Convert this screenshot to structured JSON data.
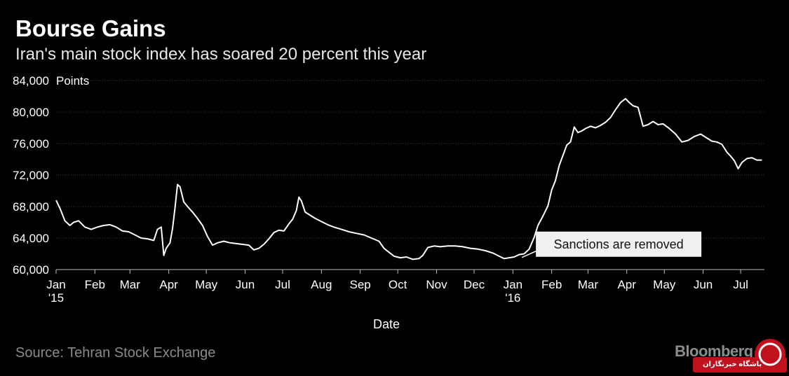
{
  "header": {
    "title": "Bourse Gains",
    "subtitle": "Iran's main stock index has soared 20 percent this year"
  },
  "footer": {
    "source": "Source: Tehran Stock Exchange",
    "brand": "Bloomberg",
    "watermark_text": "باشگاه خبرنگاران"
  },
  "colors": {
    "background": "#000000",
    "line": "#ffffff",
    "gridline": "#3a3a3a",
    "annotation_box": "#f0f0f0",
    "watermark_red": "#c0121d"
  },
  "chart_data": {
    "type": "line",
    "title": "Bourse Gains",
    "subtitle": "Iran's main stock index has soared 20 percent this year",
    "xlabel": "Date",
    "ylabel": "",
    "y_unit_label": "Points",
    "ylim": [
      60000,
      84000
    ],
    "yticks": [
      60000,
      64000,
      68000,
      72000,
      76000,
      80000,
      84000
    ],
    "ytick_labels": [
      "60,000",
      "64,000",
      "68,000",
      "72,000",
      "76,000",
      "80,000",
      "84,000"
    ],
    "xlim": [
      "2015-01-01",
      "2016-07-20"
    ],
    "xticks": [
      {
        "date": "2015-01-01",
        "label": "Jan",
        "sublabel": "'15"
      },
      {
        "date": "2015-02-01",
        "label": "Feb"
      },
      {
        "date": "2015-03-01",
        "label": "Mar"
      },
      {
        "date": "2015-04-01",
        "label": "Apr"
      },
      {
        "date": "2015-05-01",
        "label": "May"
      },
      {
        "date": "2015-06-01",
        "label": "Jun"
      },
      {
        "date": "2015-07-01",
        "label": "Jul"
      },
      {
        "date": "2015-08-01",
        "label": "Aug"
      },
      {
        "date": "2015-09-01",
        "label": "Sep"
      },
      {
        "date": "2015-10-01",
        "label": "Oct"
      },
      {
        "date": "2015-11-01",
        "label": "Nov"
      },
      {
        "date": "2015-12-01",
        "label": "Dec"
      },
      {
        "date": "2016-01-01",
        "label": "Jan",
        "sublabel": "'16"
      },
      {
        "date": "2016-02-01",
        "label": "Feb"
      },
      {
        "date": "2016-03-01",
        "label": "Mar"
      },
      {
        "date": "2016-04-01",
        "label": "Apr"
      },
      {
        "date": "2016-05-01",
        "label": "May"
      },
      {
        "date": "2016-06-01",
        "label": "Jun"
      },
      {
        "date": "2016-07-01",
        "label": "Jul"
      }
    ],
    "grid": true,
    "legend": "none",
    "annotations": [
      {
        "text": "Sanctions are removed",
        "x": "2016-01-16",
        "y": 61800
      }
    ],
    "series": [
      {
        "x": [
          "2015-01-01",
          "2015-01-04",
          "2015-01-08",
          "2015-01-12",
          "2015-01-15",
          "2015-01-19",
          "2015-01-24",
          "2015-01-29",
          "2015-02-03",
          "2015-02-08",
          "2015-02-13",
          "2015-02-18",
          "2015-02-23",
          "2015-02-28",
          "2015-03-05",
          "2015-03-10",
          "2015-03-15",
          "2015-03-20",
          "2015-03-23",
          "2015-03-26",
          "2015-03-28",
          "2015-03-30",
          "2015-04-02",
          "2015-04-04",
          "2015-04-06",
          "2015-04-08",
          "2015-04-10",
          "2015-04-13",
          "2015-04-16",
          "2015-04-20",
          "2015-04-24",
          "2015-04-28",
          "2015-05-02",
          "2015-05-06",
          "2015-05-10",
          "2015-05-15",
          "2015-05-20",
          "2015-05-25",
          "2015-05-30",
          "2015-06-04",
          "2015-06-08",
          "2015-06-12",
          "2015-06-16",
          "2015-06-20",
          "2015-06-24",
          "2015-06-28",
          "2015-07-02",
          "2015-07-06",
          "2015-07-09",
          "2015-07-12",
          "2015-07-14",
          "2015-07-16",
          "2015-07-19",
          "2015-07-23",
          "2015-07-27",
          "2015-08-01",
          "2015-08-06",
          "2015-08-11",
          "2015-08-17",
          "2015-08-23",
          "2015-08-29",
          "2015-09-04",
          "2015-09-10",
          "2015-09-16",
          "2015-09-20",
          "2015-09-24",
          "2015-09-28",
          "2015-10-03",
          "2015-10-08",
          "2015-10-13",
          "2015-10-18",
          "2015-10-21",
          "2015-10-25",
          "2015-10-30",
          "2015-11-04",
          "2015-11-10",
          "2015-11-16",
          "2015-11-22",
          "2015-11-28",
          "2015-12-04",
          "2015-12-10",
          "2015-12-16",
          "2015-12-21",
          "2015-12-25",
          "2015-12-29",
          "2016-01-02",
          "2016-01-06",
          "2016-01-10",
          "2016-01-14",
          "2016-01-18",
          "2016-01-21",
          "2016-01-25",
          "2016-01-29",
          "2016-02-01",
          "2016-02-04",
          "2016-02-07",
          "2016-02-10",
          "2016-02-13",
          "2016-02-16",
          "2016-02-19",
          "2016-02-22",
          "2016-02-25",
          "2016-02-28",
          "2016-03-03",
          "2016-03-07",
          "2016-03-11",
          "2016-03-15",
          "2016-03-19",
          "2016-03-23",
          "2016-03-27",
          "2016-03-31",
          "2016-04-03",
          "2016-04-06",
          "2016-04-10",
          "2016-04-14",
          "2016-04-18",
          "2016-04-22",
          "2016-04-26",
          "2016-04-30",
          "2016-05-05",
          "2016-05-10",
          "2016-05-15",
          "2016-05-20",
          "2016-05-25",
          "2016-05-30",
          "2016-06-04",
          "2016-06-08",
          "2016-06-12",
          "2016-06-16",
          "2016-06-20",
          "2016-06-23",
          "2016-06-26",
          "2016-06-29",
          "2016-07-02",
          "2016-07-06",
          "2016-07-10",
          "2016-07-14",
          "2016-07-18"
        ],
        "values": [
          68800,
          67800,
          66200,
          65600,
          66000,
          66200,
          65400,
          65100,
          65400,
          65600,
          65700,
          65400,
          64900,
          64800,
          64400,
          64000,
          63900,
          63700,
          65100,
          65400,
          61800,
          62700,
          63400,
          65200,
          67800,
          70800,
          70500,
          68600,
          68000,
          67300,
          66500,
          65600,
          64200,
          63100,
          63400,
          63600,
          63400,
          63300,
          63200,
          63100,
          62500,
          62700,
          63200,
          63900,
          64700,
          65000,
          64900,
          65800,
          66400,
          67500,
          69200,
          68700,
          67300,
          66900,
          66500,
          66100,
          65700,
          65400,
          65100,
          64800,
          64600,
          64400,
          64000,
          63600,
          62700,
          62200,
          61700,
          61500,
          61600,
          61300,
          61400,
          61800,
          62800,
          63000,
          62900,
          63000,
          63000,
          62900,
          62700,
          62600,
          62400,
          62100,
          61700,
          61400,
          61500,
          61600,
          61900,
          62000,
          62600,
          64100,
          65600,
          66800,
          68100,
          70100,
          71300,
          73200,
          74500,
          75800,
          76200,
          78100,
          77400,
          77600,
          77900,
          78200,
          78000,
          78300,
          78700,
          79300,
          80300,
          81200,
          81700,
          81200,
          80800,
          80600,
          78200,
          78400,
          78800,
          78400,
          78500,
          77900,
          77200,
          76200,
          76400,
          76900,
          77200,
          76700,
          76300,
          76200,
          75900,
          74900,
          74400,
          73800,
          72800,
          73600,
          74100,
          74200,
          73900,
          73900
        ]
      }
    ]
  }
}
